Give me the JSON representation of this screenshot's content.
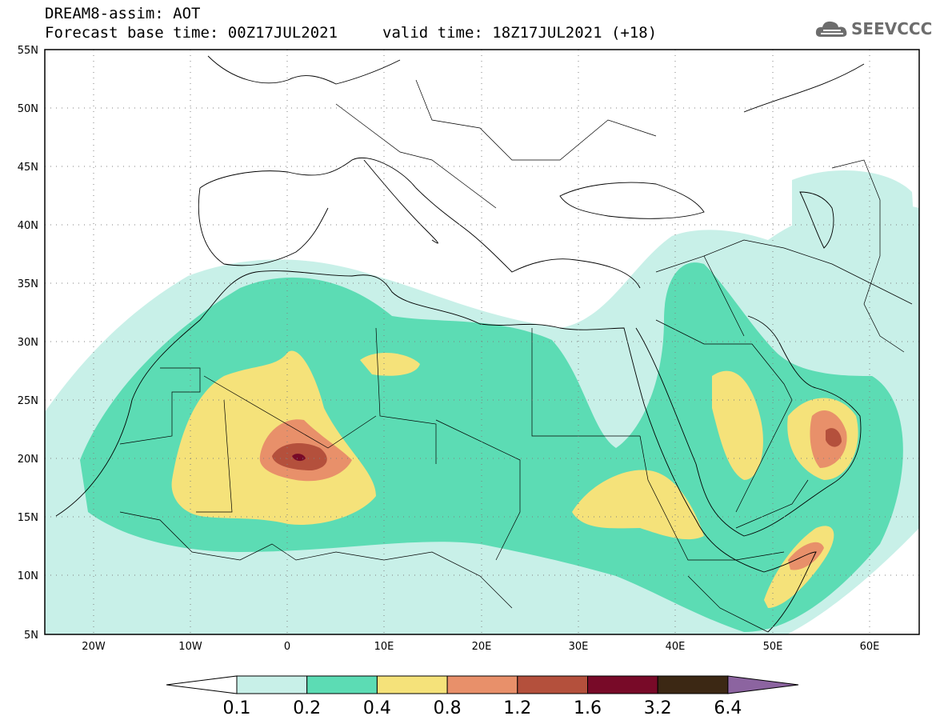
{
  "header": {
    "title": "DREAM8-assim: AOT",
    "base_time": "Forecast base time: 00Z17JUL2021",
    "valid_time": "valid time: 18Z17JUL2021 (+18)"
  },
  "logo": {
    "text": "SEEVCCC",
    "icon": "cloud-icon",
    "color": "#6d6d6d"
  },
  "map": {
    "lat_labels": [
      "55N",
      "50N",
      "45N",
      "40N",
      "35N",
      "30N",
      "25N",
      "20N",
      "15N",
      "10N",
      "5N"
    ],
    "lon_labels": [
      "20W",
      "10W",
      "0",
      "10E",
      "20E",
      "30E",
      "40E",
      "50E",
      "60E"
    ],
    "lon_range": [
      -25,
      65
    ],
    "lat_range": [
      5,
      55
    ],
    "grid": "dotted",
    "field": "Aerosol Optical Thickness"
  },
  "colorbar": {
    "labels": [
      "0.1",
      "0.2",
      "0.4",
      "0.8",
      "1.2",
      "1.6",
      "3.2",
      "6.4"
    ],
    "colors": [
      "#c8f0e8",
      "#5cdcb4",
      "#f5e27a",
      "#e8906a",
      "#b4503c",
      "#780a28",
      "#3c2814",
      "#8c64a0"
    ]
  }
}
